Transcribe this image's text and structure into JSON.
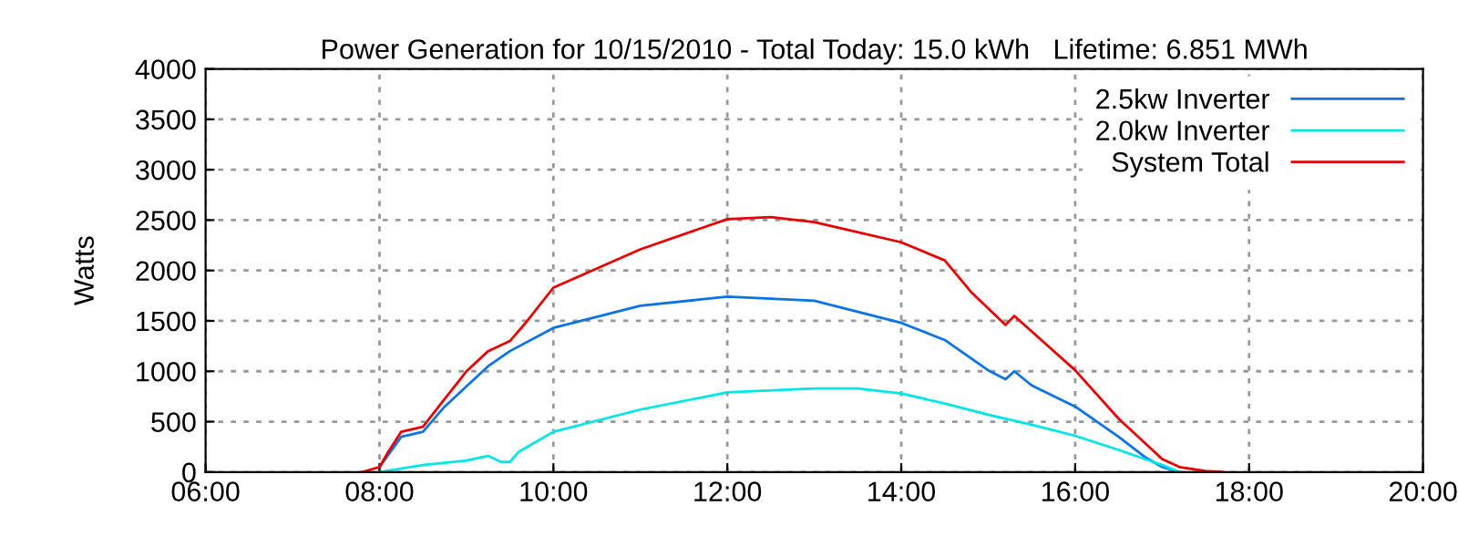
{
  "chart_data": {
    "type": "line",
    "title": "Power Generation for 10/15/2010 - Total Today: 15.0 kWh   Lifetime: 6.851 MWh",
    "ylabel": "Watts",
    "xlim": [
      6,
      20
    ],
    "xticks": [
      {
        "value": 6,
        "label": "06:00"
      },
      {
        "value": 8,
        "label": "08:00"
      },
      {
        "value": 10,
        "label": "10:00"
      },
      {
        "value": 12,
        "label": "12:00"
      },
      {
        "value": 14,
        "label": "14:00"
      },
      {
        "value": 16,
        "label": "16:00"
      },
      {
        "value": 18,
        "label": "18:00"
      },
      {
        "value": 20,
        "label": "20:00"
      }
    ],
    "ylim": [
      0,
      4000
    ],
    "yticks": [
      0,
      500,
      1000,
      1500,
      2000,
      2500,
      3000,
      3500,
      4000
    ],
    "grid": true,
    "legend": "top right",
    "line_style": "solid",
    "marker": "none",
    "series": [
      {
        "name": "2.5kw Inverter",
        "color": "#0a74e6",
        "x": [
          8.0,
          8.25,
          8.5,
          8.75,
          9.0,
          9.25,
          9.5,
          10,
          11,
          12,
          13,
          14,
          14.5,
          15,
          15.2,
          15.3,
          15.5,
          16,
          16.5,
          16.8,
          17,
          17.2
        ],
        "values": [
          50,
          350,
          400,
          650,
          850,
          1050,
          1200,
          1430,
          1650,
          1740,
          1700,
          1480,
          1310,
          1010,
          920,
          1000,
          860,
          650,
          350,
          150,
          50,
          0
        ]
      },
      {
        "name": "2.0kw Inverter",
        "color": "#00e5e5",
        "x": [
          8.0,
          8.5,
          9.0,
          9.25,
          9.4,
          9.5,
          9.6,
          10,
          11,
          12,
          13,
          13.5,
          14,
          14.5,
          15,
          15.5,
          16,
          16.5,
          17,
          17.2
        ],
        "values": [
          0,
          70,
          115,
          160,
          100,
          100,
          200,
          400,
          620,
          790,
          830,
          830,
          780,
          680,
          570,
          470,
          360,
          220,
          70,
          0
        ]
      },
      {
        "name": "System Total",
        "color": "#e60000",
        "x": [
          7.8,
          8.0,
          8.1,
          8.25,
          8.5,
          8.7,
          9.0,
          9.25,
          9.5,
          9.7,
          10,
          11,
          12,
          12.5,
          13,
          14,
          14.5,
          14.8,
          15.2,
          15.3,
          15.5,
          16,
          16.5,
          17,
          17.2,
          17.5,
          17.7
        ],
        "values": [
          0,
          50,
          200,
          400,
          450,
          670,
          1000,
          1200,
          1300,
          1500,
          1830,
          2210,
          2510,
          2530,
          2480,
          2280,
          2100,
          1790,
          1460,
          1550,
          1395,
          1010,
          530,
          130,
          50,
          10,
          0
        ]
      }
    ]
  }
}
